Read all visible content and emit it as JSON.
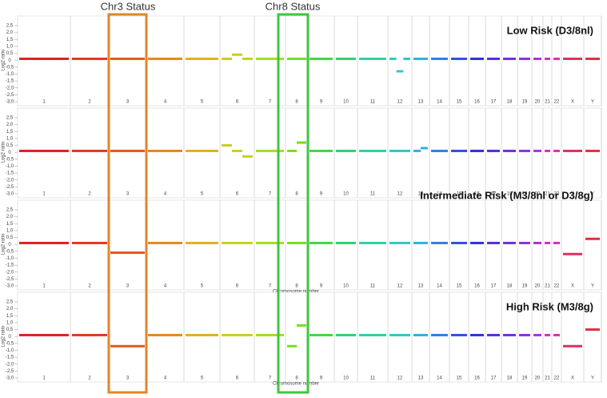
{
  "overlay": {
    "chr3_label": "Chr3 Status",
    "chr8_label": "Chr8 Status"
  },
  "chart_data": [
    {
      "type": "scatter",
      "title": "Low Risk (D3/8nl)",
      "y_label": "Log2 ratio",
      "categories": [
        "1",
        "2",
        "3",
        "4",
        "5",
        "6",
        "7",
        "8",
        "9",
        "10",
        "11",
        "12",
        "13",
        "14",
        "15",
        "16",
        "17",
        "18",
        "19",
        "20",
        "21",
        "22",
        "X",
        "Y"
      ],
      "colors": [
        "#e02020",
        "#e03a20",
        "#e05a20",
        "#e08a20",
        "#e0b020",
        "#c8d020",
        "#a0e020",
        "#70e020",
        "#40d840",
        "#30d070",
        "#30d0a0",
        "#30c8c8",
        "#30b0e0",
        "#3080e0",
        "#3050e0",
        "#3030e0",
        "#5030e0",
        "#7030e0",
        "#9030e0",
        "#b030e0",
        "#d030d0",
        "#e030a0",
        "#e03060",
        "#e03040"
      ],
      "values": [
        [
          0.1
        ],
        [
          0.1
        ],
        [
          0.1
        ],
        [
          0.1
        ],
        [
          0.1
        ],
        [
          0.1,
          0.4,
          0.1
        ],
        [
          0.1
        ],
        [
          0.1
        ],
        [
          0.1
        ],
        [
          0.1
        ],
        [
          0.1
        ],
        [
          0.1,
          -0.8,
          0.1
        ],
        [
          0.1
        ],
        [
          0.1
        ],
        [
          0.1
        ],
        [
          0.1
        ],
        [
          0.1
        ],
        [
          0.1
        ],
        [
          0.1
        ],
        [
          0.1
        ],
        [
          0.1
        ],
        [
          0.1
        ],
        [
          0.1
        ],
        [
          0.1
        ]
      ],
      "ylim": [
        -3,
        2.5
      ],
      "yticks": [
        {
          "value": 2.5,
          "label": "2,5"
        },
        {
          "value": 2,
          "label": "2,0"
        },
        {
          "value": 1.5,
          "label": "1,5"
        },
        {
          "value": 1,
          "label": "1,0"
        },
        {
          "value": 0.5,
          "label": "0,5"
        },
        0,
        {
          "value": -0.5,
          "label": "-0,5"
        },
        {
          "value": -1,
          "label": "-1,0"
        },
        {
          "value": -1.5,
          "label": "-1,5"
        },
        {
          "value": -2,
          "label": "-2,0"
        },
        {
          "value": -2.5,
          "label": "-2,5"
        },
        {
          "value": -3,
          "label": "-3,0"
        }
      ]
    },
    {
      "type": "scatter",
      "y_label": "Log2 ratio",
      "categories": [
        "1",
        "2",
        "3",
        "4",
        "5",
        "6",
        "7",
        "8",
        "9",
        "10",
        "11",
        "12",
        "13",
        "14",
        "15",
        "16",
        "17",
        "18",
        "19",
        "20",
        "21",
        "22",
        "X",
        "Y"
      ],
      "colors": [
        "#e02020",
        "#e03a20",
        "#e05a20",
        "#e08a20",
        "#e0b020",
        "#c8d020",
        "#a0e020",
        "#70e020",
        "#40d840",
        "#30d070",
        "#30d0a0",
        "#30c8c8",
        "#30b0e0",
        "#3080e0",
        "#3050e0",
        "#3030e0",
        "#5030e0",
        "#7030e0",
        "#9030e0",
        "#b030e0",
        "#d030d0",
        "#e030a0",
        "#e03060",
        "#e03040"
      ],
      "values": [
        [
          0.1
        ],
        [
          0.1
        ],
        [
          0.1
        ],
        [
          0.1
        ],
        [
          0.1
        ],
        [
          0.5,
          0.1,
          -0.3
        ],
        [
          0.1
        ],
        [
          0.1,
          0.7
        ],
        [
          0.1
        ],
        [
          0.1
        ],
        [
          0.1
        ],
        [
          0.1
        ],
        [
          0.1,
          0.3
        ],
        [
          0.1
        ],
        [
          0.1
        ],
        [
          0.1
        ],
        [
          0.1
        ],
        [
          0.1
        ],
        [
          0.1
        ],
        [
          0.1
        ],
        [
          0.1
        ],
        [
          0.1
        ],
        [
          0.1
        ],
        [
          0.1
        ]
      ],
      "ylim": [
        -3,
        2.5
      ],
      "yticks": [
        {
          "value": 2.5,
          "label": "2,5"
        },
        {
          "value": 2,
          "label": "2,0"
        },
        {
          "value": 1.5,
          "label": "1,5"
        },
        {
          "value": 1,
          "label": "1,0"
        },
        {
          "value": 0.5,
          "label": "0,5"
        },
        0,
        {
          "value": -0.5,
          "label": "-0,5"
        },
        {
          "value": -1,
          "label": "-1,0"
        },
        {
          "value": -1.5,
          "label": "-1,5"
        },
        {
          "value": -2,
          "label": "-2,0"
        },
        {
          "value": -2.5,
          "label": "-2,5"
        },
        {
          "value": -3,
          "label": "-3,0"
        }
      ]
    },
    {
      "type": "scatter",
      "title": "Intermediate Risk (M3/8nl or D3/8g)",
      "y_label": "Log2 ratio",
      "x_label": "Chromosome number",
      "categories": [
        "1",
        "2",
        "3",
        "4",
        "5",
        "6",
        "7",
        "8",
        "9",
        "10",
        "11",
        "12",
        "13",
        "14",
        "15",
        "16",
        "17",
        "18",
        "19",
        "20",
        "21",
        "22",
        "X",
        "Y"
      ],
      "colors": [
        "#e02020",
        "#e03a20",
        "#e05a20",
        "#e08a20",
        "#e0b020",
        "#c8d020",
        "#a0e020",
        "#70e020",
        "#40d840",
        "#30d070",
        "#30d0a0",
        "#30c8c8",
        "#30b0e0",
        "#3080e0",
        "#3050e0",
        "#3030e0",
        "#5030e0",
        "#7030e0",
        "#9030e0",
        "#b030e0",
        "#d030d0",
        "#e030a0",
        "#e03060",
        "#e03040"
      ],
      "values": [
        [
          0.1
        ],
        [
          0.1
        ],
        [
          -0.6
        ],
        [
          0.1
        ],
        [
          0.1
        ],
        [
          0.1
        ],
        [
          0.1
        ],
        [
          0.1
        ],
        [
          0.1
        ],
        [
          0.1
        ],
        [
          0.1
        ],
        [
          0.1
        ],
        [
          0.1
        ],
        [
          0.1
        ],
        [
          0.1
        ],
        [
          0.1
        ],
        [
          0.1
        ],
        [
          0.1
        ],
        [
          0.1
        ],
        [
          0.1
        ],
        [
          0.1
        ],
        [
          0.1
        ],
        [
          -0.7
        ],
        [
          0.4
        ]
      ],
      "ylim": [
        -3,
        2.5
      ],
      "yticks": [
        {
          "value": 2.5,
          "label": "2,5"
        },
        {
          "value": 2,
          "label": "2,0"
        },
        {
          "value": 1.5,
          "label": "1,5"
        },
        {
          "value": 1,
          "label": "1,0"
        },
        {
          "value": 0.5,
          "label": "0,5"
        },
        0,
        {
          "value": -0.5,
          "label": "-0,5"
        },
        {
          "value": -1,
          "label": "-1,0"
        },
        {
          "value": -1.5,
          "label": "-1,5"
        },
        {
          "value": -2,
          "label": "-2,0"
        },
        {
          "value": -2.5,
          "label": "-2,5"
        },
        {
          "value": -3,
          "label": "-3,0"
        }
      ]
    },
    {
      "type": "scatter",
      "title": "High Risk (M3/8g)",
      "y_label": "Log2 ratio",
      "x_label": "Chromosome number",
      "categories": [
        "1",
        "2",
        "3",
        "4",
        "5",
        "6",
        "7",
        "8",
        "9",
        "10",
        "11",
        "12",
        "13",
        "14",
        "15",
        "16",
        "17",
        "18",
        "19",
        "20",
        "21",
        "22",
        "X",
        "Y"
      ],
      "colors": [
        "#e02020",
        "#e03a20",
        "#e05a20",
        "#e08a20",
        "#e0b020",
        "#c8d020",
        "#a0e020",
        "#70e020",
        "#40d840",
        "#30d070",
        "#30d0a0",
        "#30c8c8",
        "#30b0e0",
        "#3080e0",
        "#3050e0",
        "#3030e0",
        "#5030e0",
        "#7030e0",
        "#9030e0",
        "#b030e0",
        "#d030d0",
        "#e030a0",
        "#e03060",
        "#e03040"
      ],
      "values": [
        [
          0.1
        ],
        [
          0.1
        ],
        [
          -0.7
        ],
        [
          0.1
        ],
        [
          0.1
        ],
        [
          0.1
        ],
        [
          0.1
        ],
        [
          -0.7,
          0.8
        ],
        [
          0.1
        ],
        [
          0.1
        ],
        [
          0.1
        ],
        [
          0.1
        ],
        [
          0.1
        ],
        [
          0.1
        ],
        [
          0.1
        ],
        [
          0.1
        ],
        [
          0.1
        ],
        [
          0.1
        ],
        [
          0.1
        ],
        [
          0.1
        ],
        [
          0.1
        ],
        [
          0.1
        ],
        [
          -0.7
        ],
        [
          0.5
        ]
      ],
      "ylim": [
        -3,
        2.5
      ],
      "yticks": [
        {
          "value": 2.5,
          "label": "2,5"
        },
        {
          "value": 2,
          "label": "2,0"
        },
        {
          "value": 1.5,
          "label": "1,5"
        },
        {
          "value": 1,
          "label": "1,0"
        },
        {
          "value": 0.5,
          "label": "0,5"
        },
        0,
        {
          "value": -0.5,
          "label": "-0,5"
        },
        {
          "value": -1,
          "label": "-1,0"
        },
        {
          "value": -1.5,
          "label": "-1,5"
        },
        {
          "value": -2,
          "label": "-2,0"
        },
        {
          "value": -2.5,
          "label": "-2,5"
        },
        {
          "value": -3,
          "label": "-3,0"
        }
      ]
    }
  ]
}
